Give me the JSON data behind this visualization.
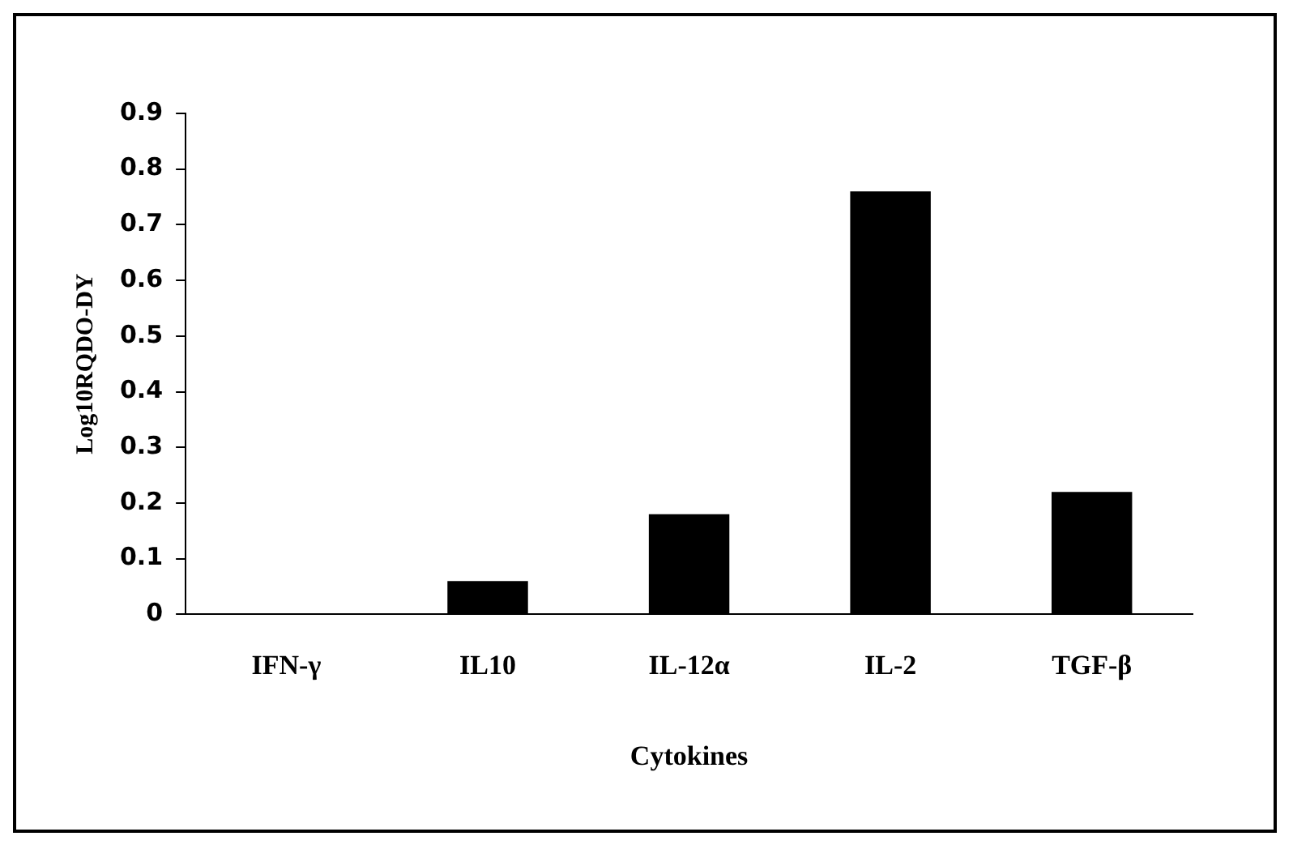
{
  "chart_data": {
    "type": "bar",
    "xlabel": "Cytokines",
    "ylabel": "Log10RQDO-DY",
    "categories": [
      "IFN-γ",
      "IL10",
      "IL-12α",
      "IL-2",
      "TGF-β"
    ],
    "values": [
      0.002,
      0.06,
      0.18,
      0.76,
      0.22
    ],
    "color": "#000000",
    "ylim": [
      0,
      0.9
    ],
    "yticks": [
      0,
      0.1,
      0.2,
      0.3,
      0.4,
      0.5,
      0.6,
      0.7,
      0.8,
      0.9
    ],
    "grid": false,
    "legend": false
  }
}
